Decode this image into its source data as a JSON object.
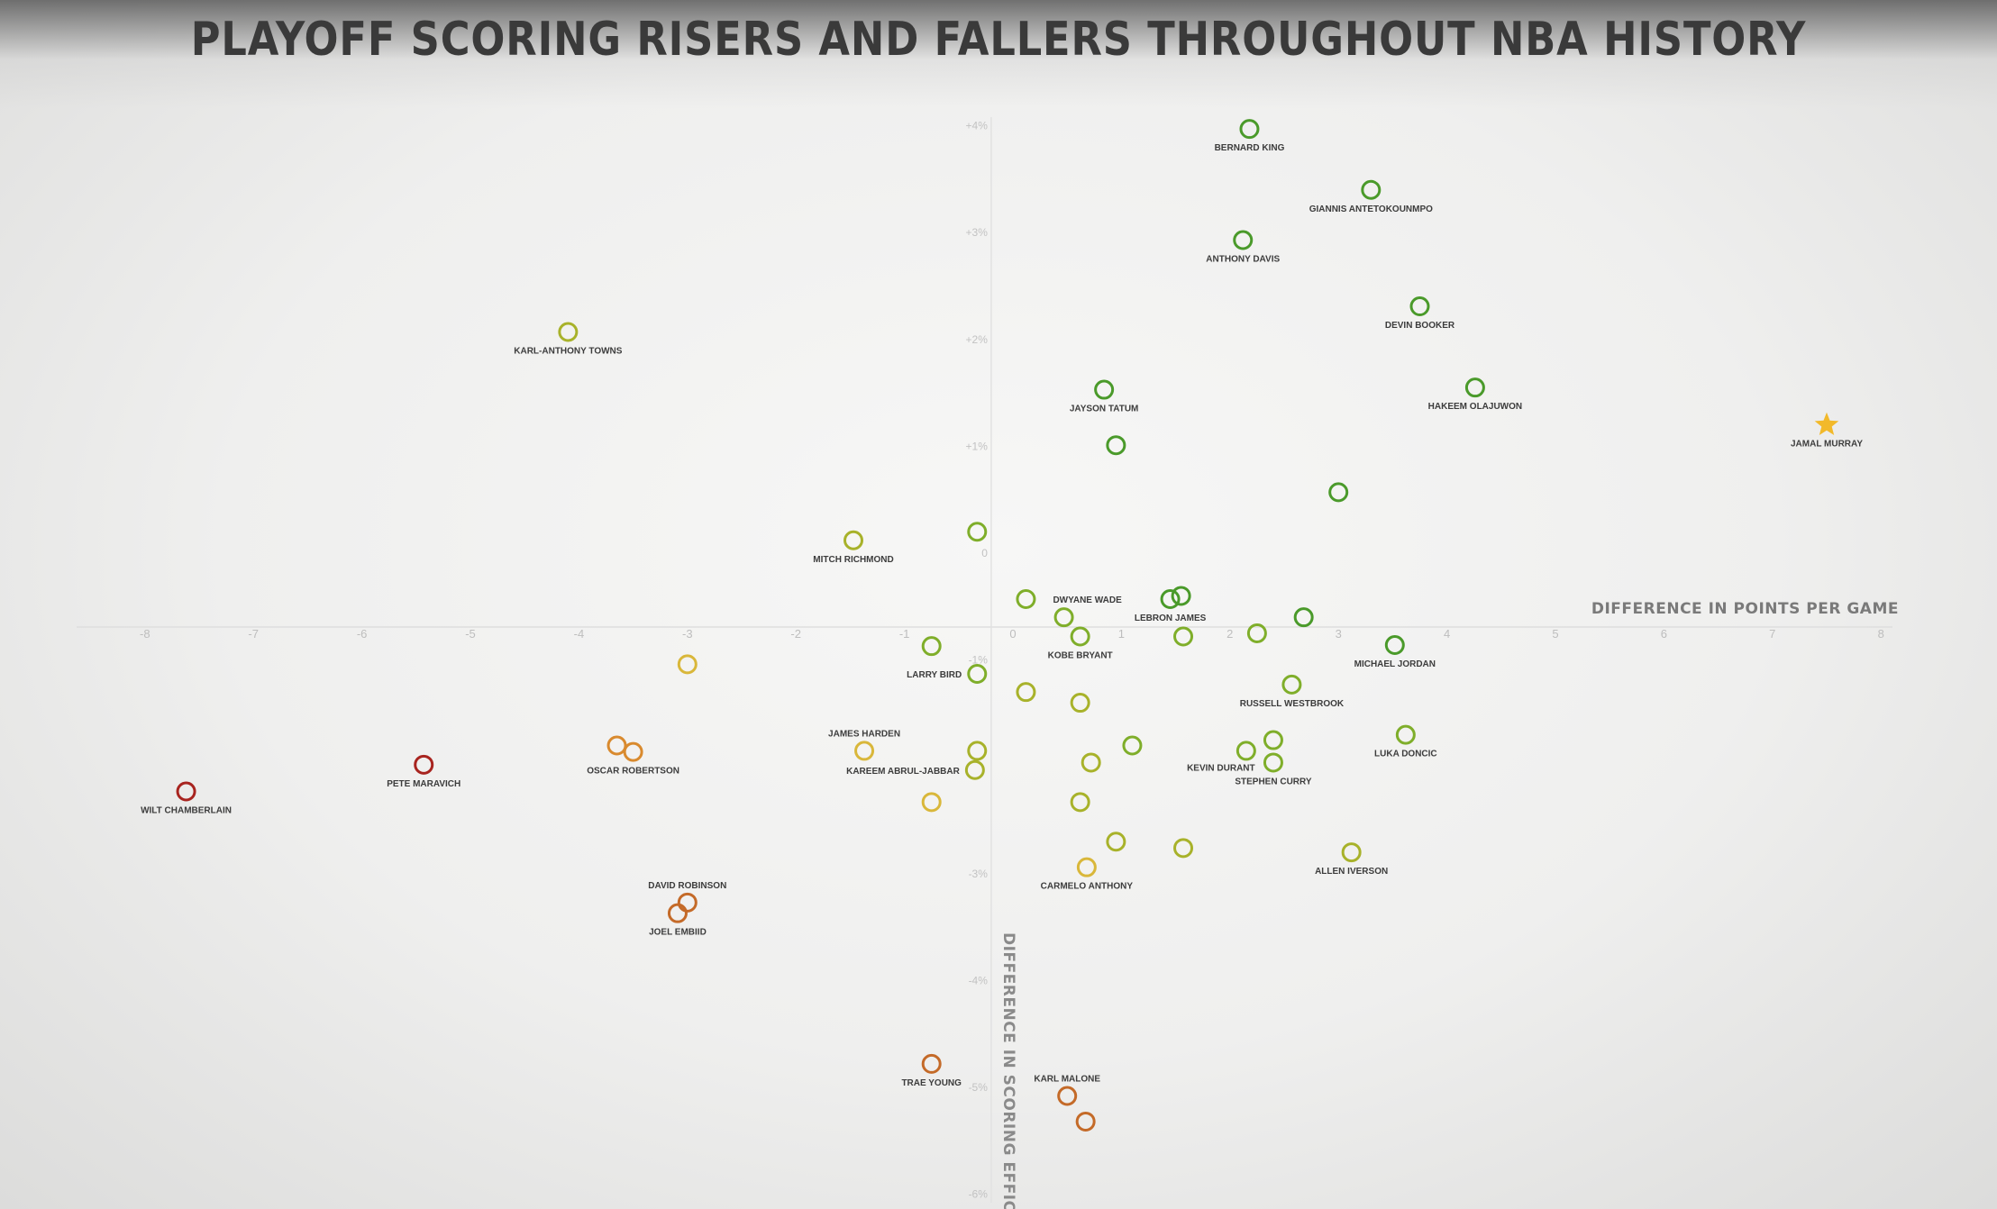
{
  "title": "PLAYOFF SCORING RISERS AND FALLERS THROUGHOUT NBA HISTORY",
  "chart_data": {
    "type": "scatter",
    "title": "PLAYOFF SCORING RISERS AND FALLERS THROUGHOUT NBA HISTORY",
    "xlabel": "DIFFERENCE IN POINTS PER GAME",
    "ylabel": "DIFFERENCE IN SCORING EFFICIENCY",
    "xlim": [
      -8,
      8
    ],
    "ylim": [
      -6,
      4
    ],
    "x_ticks": [
      -8,
      -7,
      -6,
      -5,
      -4,
      -3,
      -2,
      -1,
      0,
      1,
      2,
      3,
      4,
      5,
      6,
      7,
      8
    ],
    "x_tick_labels": [
      "-8",
      "-7",
      "-6",
      "-5",
      "-4",
      "-3",
      "-2",
      "-1",
      "0",
      "1",
      "2",
      "3",
      "4",
      "5",
      "6",
      "7",
      "8"
    ],
    "y_ticks": [
      4,
      3,
      2,
      1,
      0,
      -1,
      -3,
      -4,
      -5,
      -6
    ],
    "y_tick_labels": [
      "+4%",
      "+3%",
      "+2%",
      "+1%",
      "0",
      "-1%",
      "-3%",
      "-4%",
      "-5%",
      "-6%"
    ],
    "grid": false,
    "colors": {
      "green": "#4a9a2a",
      "lightgreen": "#7fae2a",
      "yellowgreen": "#a8b22a",
      "yellow": "#d9b73a",
      "orange": "#d98a2e",
      "darkorange": "#c46a28",
      "red": "#a8241f",
      "star": "#f2b92a"
    },
    "points": [
      {
        "name": "BERNARD KING",
        "x": 2.18,
        "y": 3.97,
        "color": "green",
        "label_pos": "below"
      },
      {
        "name": "GIANNIS ANTETOKOUNMPO",
        "x": 3.3,
        "y": 3.4,
        "color": "green",
        "label_pos": "below"
      },
      {
        "name": "ANTHONY DAVIS",
        "x": 2.12,
        "y": 2.93,
        "color": "green",
        "label_pos": "below"
      },
      {
        "name": "DEVIN BOOKER",
        "x": 3.75,
        "y": 2.31,
        "color": "green",
        "label_pos": "below"
      },
      {
        "name": "HAKEEM OLAJUWON",
        "x": 4.26,
        "y": 1.55,
        "color": "green",
        "label_pos": "below"
      },
      {
        "name": "JAMAL MURRAY",
        "x": 7.5,
        "y": 1.2,
        "color": "star",
        "marker": "star",
        "label_pos": "below"
      },
      {
        "name": "JAYSON TATUM",
        "x": 0.84,
        "y": 1.53,
        "color": "green",
        "label_pos": "below"
      },
      {
        "name": "KARL-ANTHONY TOWNS",
        "x": -4.1,
        "y": 2.07,
        "color": "yellowgreen",
        "label_pos": "below"
      },
      {
        "name": "",
        "x": 0.95,
        "y": 1.01,
        "color": "green"
      },
      {
        "name": "",
        "x": 3.0,
        "y": 0.57,
        "color": "green"
      },
      {
        "name": "",
        "x": -0.33,
        "y": 0.2,
        "color": "lightgreen"
      },
      {
        "name": "MITCH RICHMOND",
        "x": -1.47,
        "y": 0.12,
        "color": "yellowgreen",
        "label_pos": "below"
      },
      {
        "name": "DWYANE WADE",
        "x": 0.12,
        "y": -0.43,
        "color": "lightgreen",
        "label_pos": "right"
      },
      {
        "name": "LEBRON JAMES",
        "x": 1.45,
        "y": -0.43,
        "color": "green",
        "label_pos": "below"
      },
      {
        "name": "",
        "x": 1.55,
        "y": -0.4,
        "color": "green"
      },
      {
        "name": "",
        "x": 0.47,
        "y": -0.6,
        "color": "lightgreen"
      },
      {
        "name": "",
        "x": 2.68,
        "y": -0.6,
        "color": "green"
      },
      {
        "name": "KOBE BRYANT",
        "x": 0.62,
        "y": -0.78,
        "color": "lightgreen",
        "label_pos": "below"
      },
      {
        "name": "",
        "x": 1.57,
        "y": -0.78,
        "color": "lightgreen"
      },
      {
        "name": "",
        "x": 2.25,
        "y": -0.75,
        "color": "lightgreen"
      },
      {
        "name": "MICHAEL JORDAN",
        "x": 3.52,
        "y": -0.86,
        "color": "green",
        "label_pos": "below"
      },
      {
        "name": "",
        "x": -0.75,
        "y": -0.87,
        "color": "lightgreen"
      },
      {
        "name": "",
        "x": -3.0,
        "y": -1.04,
        "color": "yellow"
      },
      {
        "name": "LARRY BIRD",
        "x": -0.33,
        "y": -1.13,
        "color": "lightgreen",
        "label_pos": "left"
      },
      {
        "name": "",
        "x": 0.12,
        "y": -1.3,
        "color": "yellowgreen"
      },
      {
        "name": "",
        "x": 0.62,
        "y": -1.4,
        "color": "yellowgreen"
      },
      {
        "name": "RUSSELL WESTBROOK",
        "x": 2.57,
        "y": -1.23,
        "color": "lightgreen",
        "label_pos": "below"
      },
      {
        "name": "LUKA DONCIC",
        "x": 3.62,
        "y": -1.7,
        "color": "lightgreen",
        "label_pos": "below"
      },
      {
        "name": "",
        "x": 2.4,
        "y": -1.75,
        "color": "lightgreen"
      },
      {
        "name": "KEVIN DURANT",
        "x": 2.15,
        "y": -1.85,
        "color": "lightgreen",
        "label_pos": "below-left"
      },
      {
        "name": "STEPHEN CURRY",
        "x": 2.4,
        "y": -1.96,
        "color": "lightgreen",
        "label_pos": "below"
      },
      {
        "name": "",
        "x": 1.1,
        "y": -1.8,
        "color": "lightgreen"
      },
      {
        "name": "",
        "x": 0.72,
        "y": -1.96,
        "color": "yellowgreen"
      },
      {
        "name": "",
        "x": -0.33,
        "y": -1.85,
        "color": "yellowgreen"
      },
      {
        "name": "KAREEM ABRUL-JABBAR",
        "x": -0.35,
        "y": -2.03,
        "color": "yellowgreen",
        "label_pos": "left"
      },
      {
        "name": "JAMES HARDEN",
        "x": -1.37,
        "y": -1.85,
        "color": "yellow",
        "label_pos": "above"
      },
      {
        "name": "",
        "x": -0.75,
        "y": -2.33,
        "color": "yellow"
      },
      {
        "name": "",
        "x": 0.62,
        "y": -2.33,
        "color": "yellowgreen"
      },
      {
        "name": "",
        "x": 0.95,
        "y": -2.7,
        "color": "yellowgreen"
      },
      {
        "name": "",
        "x": 1.57,
        "y": -2.76,
        "color": "yellowgreen"
      },
      {
        "name": "CARMELO ANTHONY",
        "x": 0.68,
        "y": -2.94,
        "color": "yellow",
        "label_pos": "below"
      },
      {
        "name": "ALLEN IVERSON",
        "x": 3.12,
        "y": -2.8,
        "color": "yellowgreen",
        "label_pos": "below"
      },
      {
        "name": "OSCAR ROBERTSON",
        "x": -3.5,
        "y": -1.86,
        "color": "orange",
        "label_pos": "below"
      },
      {
        "name": "",
        "x": -3.65,
        "y": -1.8,
        "color": "orange"
      },
      {
        "name": "PETE MARAVICH",
        "x": -5.43,
        "y": -1.98,
        "color": "red",
        "label_pos": "below"
      },
      {
        "name": "WILT CHAMBERLAIN",
        "x": -7.62,
        "y": -2.23,
        "color": "red",
        "label_pos": "below"
      },
      {
        "name": "DAVID ROBINSON",
        "x": -3.0,
        "y": -3.27,
        "color": "darkorange",
        "label_pos": "above"
      },
      {
        "name": "JOEL EMBIID",
        "x": -3.09,
        "y": -3.37,
        "color": "darkorange",
        "label_pos": "below"
      },
      {
        "name": "TRAE YOUNG",
        "x": -0.75,
        "y": -4.78,
        "color": "darkorange",
        "label_pos": "below"
      },
      {
        "name": "KARL MALONE",
        "x": 0.5,
        "y": -5.08,
        "color": "darkorange",
        "label_pos": "above"
      },
      {
        "name": "",
        "x": 0.67,
        "y": -5.32,
        "color": "darkorange"
      }
    ]
  }
}
